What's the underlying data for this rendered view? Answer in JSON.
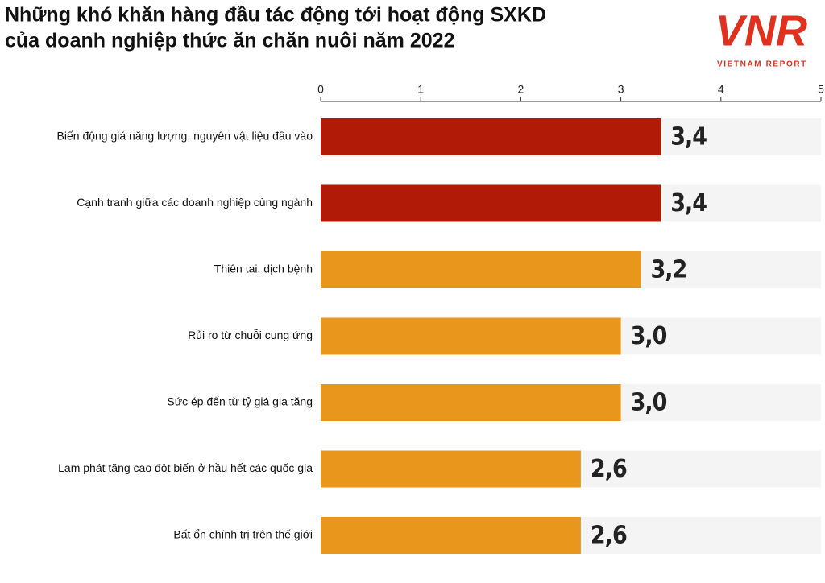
{
  "chart_data": {
    "type": "hbar",
    "title": [
      "Những khó khăn hàng đầu tác động tới hoạt động SXKD",
      "của doanh nghiệp thức ăn chăn nuôi năm 2022"
    ],
    "categories": [
      "Biến động giá năng lượng, nguyên vật liệu đầu vào",
      "Cạnh tranh giữa các doanh nghiệp cùng ngành",
      "Thiên tai, dịch bệnh",
      "Rủi ro từ chuỗi cung ứng",
      "Sức ép đến từ tỷ giá gia tăng",
      "Lạm phát tăng cao đột biến ở hầu hết các quốc gia",
      "Bất ổn chính trị trên thế giới"
    ],
    "values": [
      3.4,
      3.4,
      3.2,
      3.0,
      3.0,
      2.6,
      2.6
    ],
    "value_labels": [
      "3,4",
      "3,4",
      "3,2",
      "3,0",
      "3,0",
      "2,6",
      "2,6"
    ],
    "colors": [
      "#b01a06",
      "#b01a06",
      "#e8971c",
      "#e8971c",
      "#e8971c",
      "#e8971c",
      "#e8971c"
    ],
    "track_color": "#f4f4f4",
    "xlim": [
      0,
      5
    ],
    "xticks": [
      0,
      1,
      2,
      3,
      4,
      5
    ]
  },
  "logo": {
    "mark": "VNR",
    "tagline": "VIETNAM REPORT"
  }
}
